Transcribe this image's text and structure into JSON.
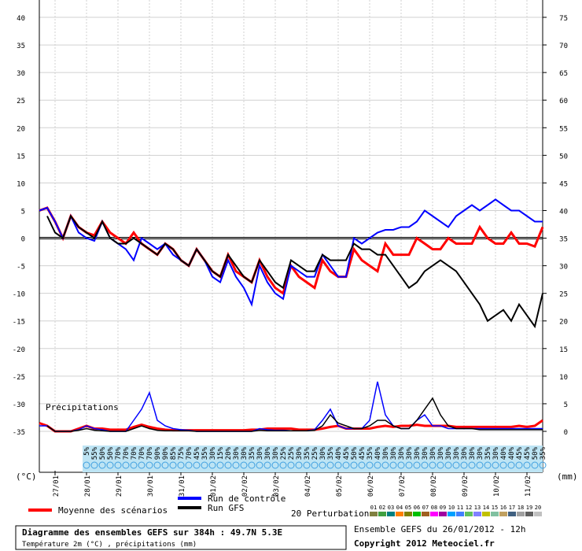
{
  "chart_data": {
    "type": "line",
    "title": "Diagramme des ensembles GEFS sur 384h : 49.7N 5.3E",
    "subtitle": "Température 2m (°C) , précipitations (mm)",
    "run_info": "Ensemble GEFS du 26/01/2012 - 12h",
    "copyright": "Copyright 2012 Meteociel.fr",
    "y_label": "(°C)",
    "y2_label": "(mm)",
    "precip_label": "Précipitations",
    "grid": true,
    "x": [
      0,
      6,
      12,
      18,
      24,
      30,
      36,
      42,
      48,
      54,
      60,
      66,
      72,
      78,
      84,
      90,
      96,
      102,
      108,
      114,
      120,
      126,
      132,
      138,
      144,
      150,
      156,
      162,
      168,
      174,
      180,
      186,
      192,
      198,
      204,
      210,
      216,
      222,
      228,
      234,
      240,
      246,
      252,
      258,
      264,
      270,
      276,
      282,
      288,
      294,
      300,
      306,
      312,
      318,
      324,
      330,
      336,
      342,
      348,
      354,
      360,
      366,
      372,
      378,
      384
    ],
    "xlim": [
      0,
      384
    ],
    "xticks": [
      {
        "value": 12,
        "label": "27/01"
      },
      {
        "value": 36,
        "label": "28/01"
      },
      {
        "value": 60,
        "label": "29/01"
      },
      {
        "value": 84,
        "label": "30/01"
      },
      {
        "value": 108,
        "label": "31/01"
      },
      {
        "value": 132,
        "label": "01/02"
      },
      {
        "value": 156,
        "label": "02/02"
      },
      {
        "value": 180,
        "label": "03/02"
      },
      {
        "value": 204,
        "label": "04/02"
      },
      {
        "value": 228,
        "label": "05/02"
      },
      {
        "value": 252,
        "label": "06/02"
      },
      {
        "value": 276,
        "label": "07/02"
      },
      {
        "value": 300,
        "label": "08/02"
      },
      {
        "value": 324,
        "label": "09/02"
      },
      {
        "value": 348,
        "label": "10/02"
      },
      {
        "value": 372,
        "label": "11/02"
      }
    ],
    "ylim": [
      -35,
      40
    ],
    "yticks": [
      -35,
      -30,
      -25,
      -20,
      -15,
      -10,
      -5,
      0,
      5,
      10,
      15,
      20,
      25,
      30,
      35,
      40
    ],
    "y2lim": [
      0,
      75
    ],
    "y2ticks": [
      0,
      5,
      10,
      15,
      20,
      25,
      30,
      35,
      40,
      45,
      50,
      55,
      60,
      65,
      70,
      75
    ],
    "series": [
      {
        "name": "Moyenne des scénarios",
        "color": "#ff0000",
        "values": [
          5,
          5.5,
          3,
          0,
          4,
          2,
          1,
          0.5,
          3,
          1,
          0,
          -1,
          1,
          -1,
          -2,
          -3,
          -1,
          -2,
          -4,
          -5,
          -2,
          -4,
          -6,
          -7,
          -3,
          -6,
          -7,
          -8,
          -4,
          -7,
          -9,
          -10,
          -5,
          -7,
          -8,
          -9,
          -4,
          -6,
          -7,
          -7,
          -2,
          -4,
          -5,
          -6,
          -1,
          -3,
          -3,
          -3,
          0,
          -1,
          -2,
          -2,
          0,
          -1,
          -1,
          -1,
          2,
          0,
          -1,
          -1,
          1,
          -1,
          -1,
          -1.5,
          2
        ]
      },
      {
        "name": "Run de contrôle",
        "color": "#0000ff",
        "values": [
          5,
          5.5,
          3,
          0,
          4,
          1,
          0,
          -0.5,
          3,
          0,
          -1,
          -2,
          -4,
          0,
          -1,
          -2,
          -1,
          -3,
          -4,
          -5,
          -2,
          -4,
          -7,
          -8,
          -4,
          -7,
          -9,
          -12,
          -5,
          -8,
          -10,
          -11,
          -5,
          -6,
          -7,
          -7,
          -3,
          -5,
          -7,
          -7,
          0,
          -1,
          0,
          1,
          1.5,
          1.5,
          2,
          2,
          3,
          5,
          4,
          3,
          2,
          4,
          5,
          6,
          5,
          6,
          7,
          6,
          5,
          5,
          4,
          3,
          3
        ]
      },
      {
        "name": "Run GFS",
        "color": "#000000",
        "values": [
          null,
          4,
          1,
          0,
          4,
          2,
          1,
          0,
          3,
          0,
          -1,
          -1,
          0,
          -1,
          -2,
          -3,
          -1,
          -2,
          -4,
          -5,
          -2,
          -4,
          -6,
          -7,
          -3,
          -5,
          -7,
          -8,
          -4,
          -6,
          -8,
          -9,
          -4,
          -5,
          -6,
          -6,
          -3,
          -4,
          -4,
          -4,
          -1,
          -2,
          -2,
          -3,
          -3,
          -5,
          -7,
          -9,
          -8,
          -6,
          -5,
          -4,
          -5,
          -6,
          -8,
          -10,
          -12,
          -15,
          -14,
          -13,
          -15,
          -12,
          -14,
          -16,
          -10
        ]
      }
    ],
    "precip_series": [
      {
        "color": "#ff0000",
        "axis": "y2",
        "values": [
          1.5,
          1,
          0,
          0,
          0,
          0.5,
          1,
          0.5,
          0.5,
          0.3,
          0.3,
          0.3,
          0.8,
          1.2,
          0.8,
          0.5,
          0.3,
          0.2,
          0.2,
          0.2,
          0.2,
          0.2,
          0.2,
          0.2,
          0.2,
          0.2,
          0.2,
          0.3,
          0.3,
          0.5,
          0.5,
          0.5,
          0.5,
          0.3,
          0.3,
          0.3,
          0.5,
          0.8,
          1,
          0.5,
          0.5,
          0.5,
          0.5,
          0.8,
          1,
          0.8,
          1,
          1,
          1.2,
          1,
          1,
          1,
          1,
          0.8,
          0.8,
          0.8,
          0.8,
          0.8,
          0.8,
          0.8,
          0.8,
          1,
          0.8,
          1,
          2
        ]
      },
      {
        "color": "#0000ff",
        "axis": "y2",
        "values": [
          1,
          1,
          0,
          0,
          0,
          0.3,
          1,
          0.5,
          0.3,
          0,
          0,
          0,
          2,
          4,
          7,
          2,
          1,
          0.5,
          0.3,
          0.2,
          0,
          0,
          0,
          0,
          0,
          0,
          0,
          0,
          0.5,
          0.3,
          0.2,
          0.2,
          0.1,
          0.1,
          0.1,
          0.3,
          2,
          4,
          1,
          0.5,
          0.5,
          0.5,
          2,
          9,
          3,
          1,
          0.5,
          0.5,
          2,
          3,
          1,
          1,
          0.5,
          0.5,
          0.5,
          0.5,
          0.5,
          0.5,
          0.5,
          0.5,
          0.5,
          0.5,
          0.5,
          0.5,
          0.5
        ]
      },
      {
        "color": "#000000",
        "axis": "y2",
        "values": [
          null,
          1,
          0,
          0,
          0,
          0.2,
          0.5,
          0.2,
          0.1,
          0,
          0,
          0,
          0.5,
          1,
          0.5,
          0.2,
          0.1,
          0.1,
          0.1,
          0.1,
          0,
          0,
          0,
          0,
          0,
          0,
          0,
          0,
          0.2,
          0.1,
          0.1,
          0.1,
          0.1,
          0.1,
          0.1,
          0.2,
          1,
          3,
          1.5,
          1,
          0.5,
          0.5,
          1,
          2,
          2,
          1,
          0.5,
          0.5,
          2,
          4,
          6,
          3,
          1,
          0.5,
          0.5,
          0.5,
          0.3,
          0.3,
          0.3,
          0.3,
          0.3,
          0.3,
          0.3,
          0.3,
          0.3
        ]
      }
    ],
    "precip_probability_labels": [
      "5%",
      "55%",
      "50%",
      "50%",
      "70%",
      "70%",
      "70%",
      "70%",
      "70%",
      "90%",
      "90%",
      "85%",
      "75%",
      "70%",
      "45%",
      "35%",
      "30%",
      "15%",
      "20%",
      "30%",
      "30%",
      "35%",
      "30%",
      "30%",
      "30%",
      "25%",
      "25%",
      "30%",
      "35%",
      "25%",
      "30%",
      "35%",
      "40%",
      "45%",
      "50%",
      "45%",
      "35%",
      "40%",
      "30%",
      "30%",
      "30%",
      "30%",
      "30%",
      "30%",
      "30%",
      "30%",
      "30%",
      "30%",
      "30%",
      "30%",
      "30%",
      "35%",
      "30%",
      "40%",
      "40%",
      "45%",
      "45%",
      "50%",
      "35%"
    ],
    "perturbations": {
      "label": "20 Perturbations",
      "items": [
        {
          "name": "01",
          "color": "#808040"
        },
        {
          "name": "02",
          "color": "#40a040"
        },
        {
          "name": "03",
          "color": "#008080"
        },
        {
          "name": "04",
          "color": "#ff8000"
        },
        {
          "name": "05",
          "color": "#808000"
        },
        {
          "name": "06",
          "color": "#00c000"
        },
        {
          "name": "07",
          "color": "#a06020"
        },
        {
          "name": "08",
          "color": "#ff00ff"
        },
        {
          "name": "09",
          "color": "#a000a0"
        },
        {
          "name": "10",
          "color": "#00a0ff"
        },
        {
          "name": "11",
          "color": "#4080ff"
        },
        {
          "name": "12",
          "color": "#60c060"
        },
        {
          "name": "13",
          "color": "#8080ff"
        },
        {
          "name": "14",
          "color": "#c0c000"
        },
        {
          "name": "15",
          "color": "#80c0a0"
        },
        {
          "name": "16",
          "color": "#c0a060"
        },
        {
          "name": "17",
          "color": "#406080"
        },
        {
          "name": "18",
          "color": "#a0a0a0"
        },
        {
          "name": "19",
          "color": "#606060"
        },
        {
          "name": "20",
          "color": "#c0c0c0"
        }
      ]
    }
  }
}
